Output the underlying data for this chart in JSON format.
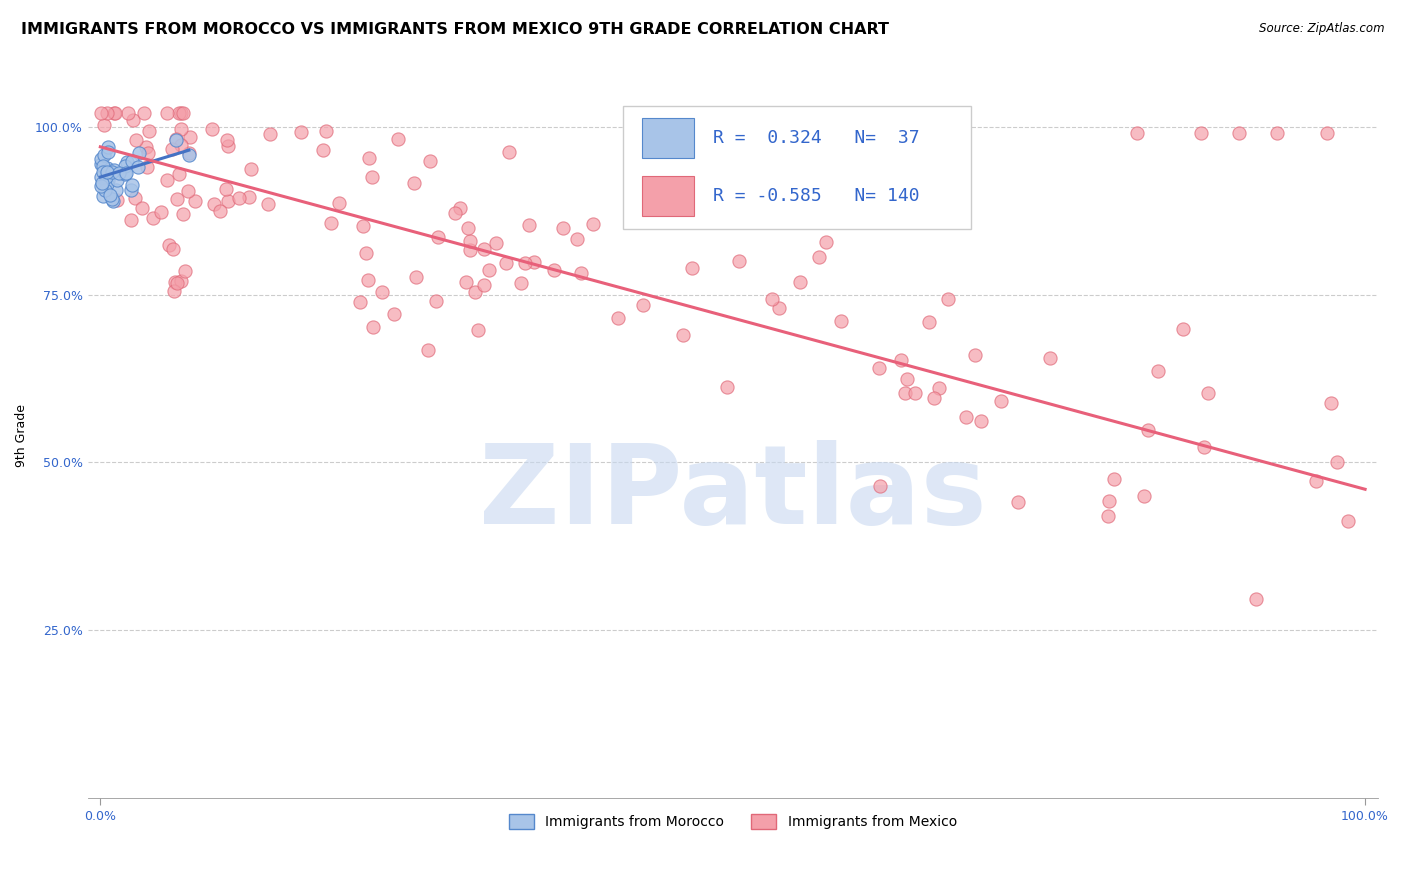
{
  "title": "IMMIGRANTS FROM MOROCCO VS IMMIGRANTS FROM MEXICO 9TH GRADE CORRELATION CHART",
  "source": "Source: ZipAtlas.com",
  "ylabel": "9th Grade",
  "watermark": "ZIPatlas",
  "legend_r_morocco": "0.324",
  "legend_n_morocco": "37",
  "legend_r_mexico": "-0.585",
  "legend_n_mexico": "140",
  "morocco_color": "#a8c4e8",
  "mexico_color": "#f4a0aa",
  "morocco_edge_color": "#5588cc",
  "mexico_edge_color": "#e06878",
  "morocco_line_color": "#4472c4",
  "mexico_line_color": "#e8607a",
  "grid_color": "#cccccc",
  "background_color": "#ffffff",
  "title_fontsize": 11.5,
  "axis_label_fontsize": 9,
  "tick_fontsize": 9,
  "legend_fontsize": 13,
  "watermark_color": "#c8d8f0",
  "watermark_fontsize": 80,
  "morocco_trend_x": [
    0.0,
    0.07
  ],
  "morocco_trend_y": [
    0.925,
    0.965
  ],
  "mexico_trend_x": [
    0.0,
    1.0
  ],
  "mexico_trend_y": [
    0.97,
    0.46
  ],
  "ytick_positions": [
    0.25,
    0.5,
    0.75,
    1.0
  ],
  "ytick_labels": [
    "25.0%",
    "50.0%",
    "75.0%",
    "100.0%"
  ],
  "xlim": [
    -0.01,
    1.01
  ],
  "ylim": [
    0.0,
    1.08
  ]
}
